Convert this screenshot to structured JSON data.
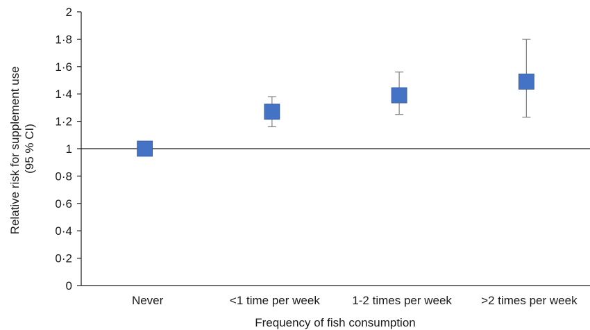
{
  "colors": {
    "marker": "#4472c4",
    "error_bar": "#7f7f7f",
    "axis": "#1a1a1a"
  },
  "chart_data": {
    "type": "scatter",
    "title": "",
    "xlabel": "Frequency of fish consumption",
    "ylabel_lines": [
      "Relative risk for supplement use",
      "(95 % CI)"
    ],
    "ylim": [
      0,
      2
    ],
    "yticks": [
      {
        "value": 0,
        "label": "0"
      },
      {
        "value": 0.2,
        "label": "0·2"
      },
      {
        "value": 0.4,
        "label": "0·4"
      },
      {
        "value": 0.6,
        "label": "0·6"
      },
      {
        "value": 0.8,
        "label": "0·8"
      },
      {
        "value": 1,
        "label": "1"
      },
      {
        "value": 1.2,
        "label": "1·2"
      },
      {
        "value": 1.4,
        "label": "1·4"
      },
      {
        "value": 1.6,
        "label": "1·6"
      },
      {
        "value": 1.8,
        "label": "1·8"
      },
      {
        "value": 2,
        "label": "2"
      }
    ],
    "reference_line": 1,
    "categories": [
      "Never",
      "<1 time per week",
      "1-2 times per week",
      ">2 times per week"
    ],
    "values": [
      1.0,
      1.27,
      1.39,
      1.49
    ],
    "ci_lower": [
      null,
      1.16,
      1.25,
      1.23
    ],
    "ci_upper": [
      null,
      1.38,
      1.56,
      1.8
    ],
    "grid": false,
    "legend": "none"
  }
}
